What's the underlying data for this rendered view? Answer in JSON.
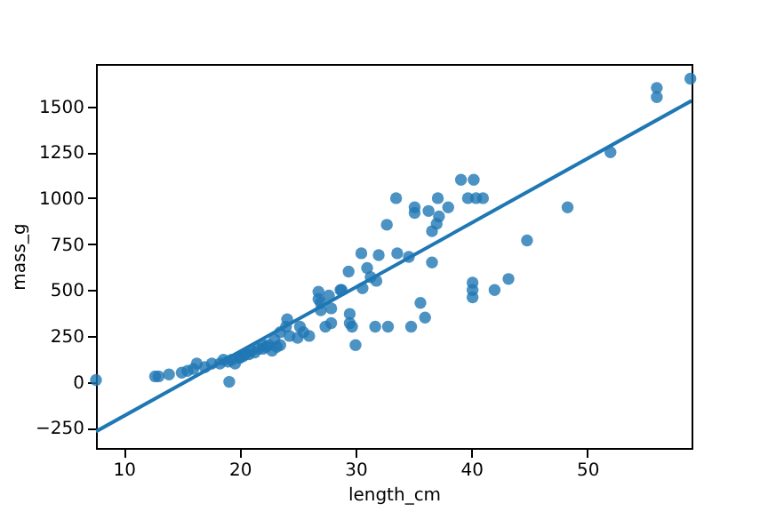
{
  "chart_data": {
    "type": "scatter",
    "xlabel": "length_cm",
    "ylabel": "mass_g",
    "xlim": [
      7.6,
      59.0
    ],
    "ylim": [
      -360,
      1730
    ],
    "xticks": [
      10,
      20,
      30,
      40,
      50
    ],
    "yticks": [
      -250,
      0,
      250,
      500,
      750,
      1000,
      1250,
      1500
    ],
    "grid": false,
    "series": [
      {
        "marker": "circle",
        "color": "#1f77b4",
        "x": [
          7.6,
          12.7,
          13.0,
          13.9,
          15.0,
          15.5,
          16.0,
          16.3,
          17.0,
          17.6,
          18.3,
          18.6,
          19.0,
          19.1,
          19.3,
          19.6,
          20.0,
          20.0,
          20.3,
          20.5,
          20.8,
          21.0,
          21.3,
          21.6,
          22.0,
          22.0,
          22.3,
          22.5,
          22.8,
          23.0,
          23.2,
          23.5,
          23.5,
          24.0,
          24.1,
          24.3,
          25.0,
          25.2,
          25.5,
          26.0,
          26.8,
          26.8,
          27.0,
          27.0,
          27.4,
          27.7,
          27.9,
          27.9,
          28.7,
          28.8,
          29.4,
          29.5,
          29.5,
          29.7,
          30.0,
          30.5,
          30.6,
          31.0,
          31.3,
          31.7,
          31.8,
          32.0,
          32.7,
          32.8,
          33.5,
          33.6,
          34.6,
          34.8,
          35.1,
          35.1,
          35.6,
          36.0,
          36.3,
          36.6,
          36.6,
          37.0,
          37.1,
          37.2,
          38.0,
          39.1,
          39.7,
          40.1,
          40.1,
          40.1,
          40.2,
          40.4,
          41.0,
          42.0,
          43.2,
          44.8,
          48.3,
          52.0,
          56.0,
          56.0,
          58.9
        ],
        "values": [
          10,
          30,
          30,
          40,
          50,
          60,
          70,
          100,
          80,
          100,
          100,
          120,
          110,
          0,
          120,
          100,
          130,
          135,
          140,
          150,
          150,
          170,
          160,
          180,
          180,
          200,
          190,
          200,
          170,
          230,
          190,
          200,
          270,
          300,
          340,
          250,
          240,
          300,
          270,
          250,
          490,
          450,
          430,
          390,
          300,
          470,
          400,
          320,
          500,
          500,
          600,
          370,
          320,
          300,
          200,
          700,
          510,
          620,
          570,
          300,
          550,
          690,
          855,
          300,
          1000,
          700,
          680,
          300,
          950,
          920,
          430,
          350,
          930,
          820,
          650,
          860,
          1000,
          900,
          950,
          1100,
          1000,
          540,
          500,
          460,
          1100,
          1000,
          1000,
          500,
          560,
          770,
          950,
          1250,
          1600,
          1550,
          1650
        ]
      },
      {
        "type": "line",
        "marker": "none",
        "color": "#1f77b4",
        "x": [
          7.6,
          59.0
        ],
        "values": [
          -270,
          1530
        ]
      }
    ]
  }
}
